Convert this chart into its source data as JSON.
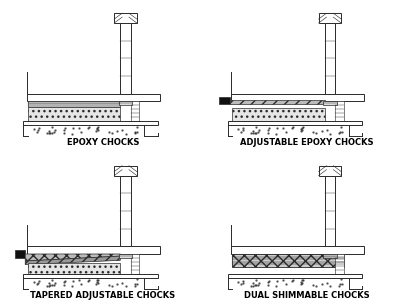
{
  "background": "#ffffff",
  "panels": [
    {
      "label": "EPOXY CHOCKS"
    },
    {
      "label": "ADJUSTABLE EPOXY CHOCKS"
    },
    {
      "label": "TAPERED ADJUSTABLE CHOCKS"
    },
    {
      "label": "DUAL SHIMMABLE CHOCKS"
    }
  ],
  "label_fontsize": 6.0,
  "lc": "#2a2a2a",
  "lw": 0.7
}
